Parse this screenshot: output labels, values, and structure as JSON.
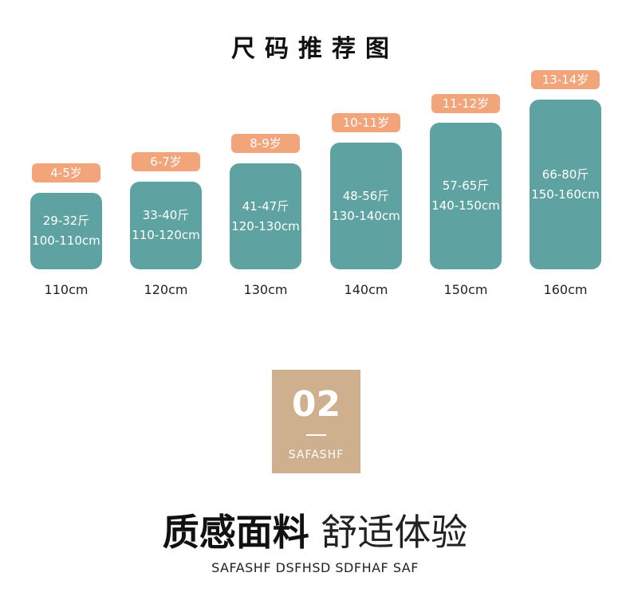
{
  "title": "尺码推荐图",
  "sizes": [
    {
      "age": "4-5岁",
      "weight": "29-32斤",
      "height_range": "100-110cm",
      "height": "110cm"
    },
    {
      "age": "6-7岁",
      "weight": "33-40斤",
      "height_range": "110-120cm",
      "height": "120cm"
    },
    {
      "age": "8-9岁",
      "weight": "41-47斤",
      "height_range": "120-130cm",
      "height": "130cm"
    },
    {
      "age": "10-11岁",
      "weight": "48-56斤",
      "height_range": "130-140cm",
      "height": "140cm"
    },
    {
      "age": "11-12岁",
      "weight": "57-65斤",
      "height_range": "140-150cm",
      "height": "150cm"
    },
    {
      "age": "13-14岁",
      "weight": "66-80斤",
      "height_range": "150-160cm",
      "height": "160cm"
    }
  ],
  "section": {
    "number": "02",
    "tag": "SAFASHF"
  },
  "headline": {
    "bold": "质感面料",
    "light": "舒适体验"
  },
  "subline": "SAFASHF DSFHSD SDFHAF SAF",
  "colors": {
    "block": "#5fa2a2",
    "pill": "#f2a57a",
    "badge": "#cfb08e"
  }
}
